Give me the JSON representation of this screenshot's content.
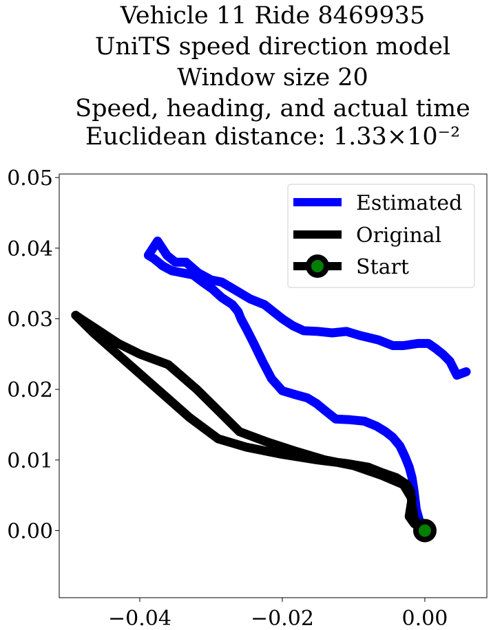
{
  "chart_data": {
    "type": "line",
    "title_lines": [
      "Vehicle 11 Ride 8469935",
      "UniTS speed direction model",
      "Window size 20",
      "Speed, heading, and actual time",
      "Euclidean distance: 1.33×10⁻²"
    ],
    "xlabel": "",
    "ylabel": "",
    "xlim": [
      -0.0513,
      0.0087
    ],
    "ylim": [
      -0.0095,
      0.0505
    ],
    "xticks": [
      -0.04,
      -0.02,
      0.0
    ],
    "xtick_labels": [
      "−0.04",
      "−0.02",
      "0.00"
    ],
    "yticks": [
      0.0,
      0.01,
      0.02,
      0.03,
      0.04,
      0.05
    ],
    "ytick_labels": [
      "0.00",
      "0.01",
      "0.02",
      "0.03",
      "0.04",
      "0.05"
    ],
    "grid": false,
    "legend_position": "upper-right",
    "series": [
      {
        "name": "Estimated",
        "color": "#0000ff",
        "x": [
          0.0,
          -0.0007,
          -0.0012,
          -0.0015,
          -0.0018,
          -0.0022,
          -0.0028,
          -0.0035,
          -0.0045,
          -0.0055,
          -0.0068,
          -0.0085,
          -0.0105,
          -0.0125,
          -0.014,
          -0.0152,
          -0.0165,
          -0.018,
          -0.02,
          -0.0215,
          -0.0228,
          -0.024,
          -0.025,
          -0.0258,
          -0.0262,
          -0.027,
          -0.0285,
          -0.0298,
          -0.0312,
          -0.0325,
          -0.034,
          -0.0355,
          -0.0368,
          -0.038,
          -0.0388,
          -0.0375,
          -0.0362,
          -0.035,
          -0.0335,
          -0.0318,
          -0.03,
          -0.0285,
          -0.0265,
          -0.0245,
          -0.0225,
          -0.02,
          -0.0185,
          -0.017,
          -0.015,
          -0.013,
          -0.011,
          -0.009,
          -0.0065,
          -0.0045,
          -0.003,
          -0.001,
          0.0005,
          0.0015,
          0.0025,
          0.0035,
          0.0045,
          0.0058
        ],
        "y": [
          0.0,
          0.0012,
          0.003,
          0.0055,
          0.0075,
          0.009,
          0.0105,
          0.012,
          0.0132,
          0.014,
          0.0148,
          0.0155,
          0.0157,
          0.0158,
          0.017,
          0.018,
          0.0188,
          0.0192,
          0.0198,
          0.0215,
          0.024,
          0.0265,
          0.0285,
          0.03,
          0.031,
          0.032,
          0.033,
          0.0342,
          0.0352,
          0.0362,
          0.0365,
          0.0368,
          0.0375,
          0.0385,
          0.039,
          0.041,
          0.039,
          0.038,
          0.038,
          0.0365,
          0.0355,
          0.0352,
          0.034,
          0.0328,
          0.032,
          0.03,
          0.029,
          0.0283,
          0.0282,
          0.028,
          0.0282,
          0.0276,
          0.027,
          0.0262,
          0.0262,
          0.0265,
          0.0265,
          0.0258,
          0.025,
          0.024,
          0.022,
          0.0225
        ]
      },
      {
        "name": "Original",
        "color": "#000000",
        "x": [
          0.0,
          -0.001,
          -0.0015,
          -0.0018,
          -0.002,
          -0.0025,
          -0.004,
          -0.006,
          -0.008,
          -0.011,
          -0.015,
          -0.02,
          -0.025,
          -0.029,
          -0.033,
          -0.0375,
          -0.042,
          -0.0465,
          -0.049,
          -0.048,
          -0.046,
          -0.043,
          -0.04,
          -0.036,
          -0.032,
          -0.029,
          -0.026,
          -0.022,
          -0.018,
          -0.014,
          -0.01,
          -0.006,
          -0.003,
          -0.0018,
          -0.0022,
          -0.0015,
          0.0
        ],
        "y": [
          0.0,
          0.0008,
          0.0018,
          0.0035,
          0.0055,
          0.0065,
          0.0075,
          0.0082,
          0.009,
          0.0095,
          0.01,
          0.0108,
          0.0118,
          0.013,
          0.016,
          0.02,
          0.024,
          0.028,
          0.0305,
          0.0298,
          0.0285,
          0.0265,
          0.025,
          0.0235,
          0.02,
          0.017,
          0.014,
          0.0125,
          0.0112,
          0.01,
          0.0092,
          0.0078,
          0.0065,
          0.0045,
          0.002,
          0.001,
          0.0
        ]
      }
    ],
    "start_marker": {
      "name": "Start",
      "x": 0.0,
      "y": 0.0,
      "edge_color": "#000000",
      "face_color": "#008000"
    },
    "line_widths_note": "",
    "legend_entries": [
      "Estimated",
      "Original",
      "Start"
    ]
  }
}
